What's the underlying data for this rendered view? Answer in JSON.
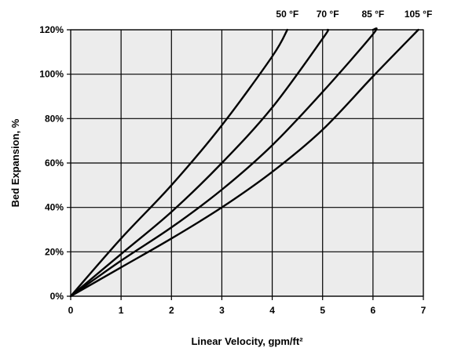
{
  "chart_data": {
    "type": "line",
    "xlabel": "Linear Velocity, gpm/ft²",
    "ylabel": "Bed Expansion, %",
    "xlim": [
      0,
      7
    ],
    "ylim": [
      0,
      120
    ],
    "x_ticks": [
      "0",
      "1",
      "2",
      "3",
      "4",
      "5",
      "6",
      "7"
    ],
    "y_ticks": [
      "0%",
      "20%",
      "40%",
      "60%",
      "80%",
      "100%",
      "120%"
    ],
    "grid": true,
    "plot_background": "#ececec",
    "line_color": "#000000",
    "series": [
      {
        "name": "50 °F",
        "x": [
          0,
          1,
          2,
          3,
          4,
          4.3
        ],
        "y": [
          0,
          26,
          50,
          77,
          108,
          120
        ]
      },
      {
        "name": "70 °F",
        "x": [
          0,
          1,
          2,
          3,
          4,
          5,
          5.1
        ],
        "y": [
          0,
          19,
          38,
          60,
          85,
          116,
          120
        ]
      },
      {
        "name": "85 °F",
        "x": [
          0,
          1,
          2,
          3,
          4,
          5,
          6,
          6.0
        ],
        "y": [
          0,
          16,
          31,
          48,
          68,
          92,
          118,
          120
        ]
      },
      {
        "name": "105 °F",
        "x": [
          0,
          1,
          2,
          3,
          4,
          5,
          6,
          6.9
        ],
        "y": [
          0,
          13,
          26,
          40,
          56,
          75,
          99,
          120
        ]
      }
    ]
  }
}
